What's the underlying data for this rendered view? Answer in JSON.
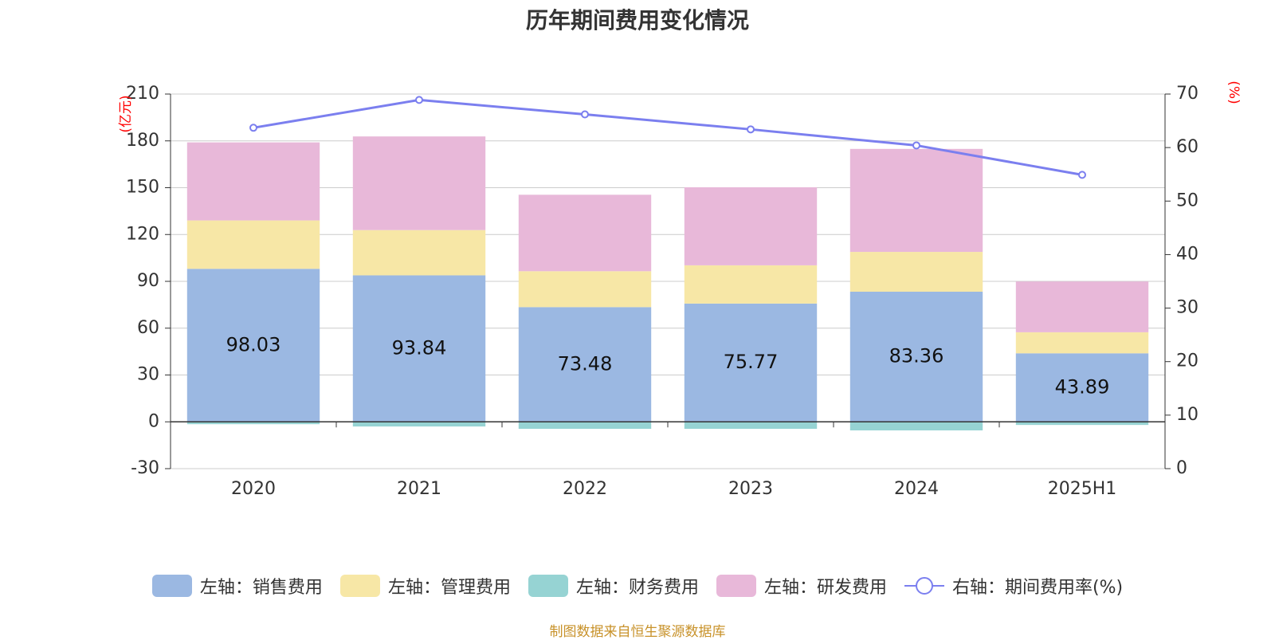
{
  "title": "历年期间费用变化情况",
  "source": "制图数据来自恒生聚源数据库",
  "colors": {
    "title": "#333333",
    "axis_unit": "#ff0000",
    "source": "#c8922a",
    "axis_line": "#333333",
    "grid": "#cccccc",
    "tick_label": "#333333"
  },
  "chart_data": {
    "type": "bar",
    "stacked": true,
    "categories": [
      "2020",
      "2021",
      "2022",
      "2023",
      "2024",
      "2025H1"
    ],
    "y_left": {
      "unit": "(亿元)",
      "range": [
        -30,
        210
      ],
      "ticks": [
        -30,
        0,
        30,
        60,
        90,
        120,
        150,
        180,
        210
      ]
    },
    "y_right": {
      "unit": "(%)",
      "range": [
        0,
        70
      ],
      "ticks": [
        0,
        10,
        20,
        30,
        40,
        50,
        60,
        70
      ]
    },
    "grid": true,
    "legend_position": "bottom",
    "series": [
      {
        "name": "左轴：销售费用",
        "axis": "left",
        "color": "#9bb8e2",
        "values": [
          98.03,
          93.84,
          73.48,
          75.77,
          83.36,
          43.89
        ],
        "labels": [
          "98.03",
          "93.84",
          "73.48",
          "75.77",
          "83.36",
          "43.89"
        ]
      },
      {
        "name": "左轴：管理费用",
        "axis": "left",
        "color": "#f7e7a6",
        "values": [
          31,
          29,
          23,
          24.5,
          25.5,
          13.5
        ]
      },
      {
        "name": "左轴：财务费用",
        "axis": "left",
        "color": "#96d3d3",
        "values": [
          -1.5,
          -3,
          -4.5,
          -4.5,
          -5.5,
          -2
        ]
      },
      {
        "name": "左轴：研发费用",
        "axis": "left",
        "color": "#e8b8d9",
        "values": [
          50,
          60,
          49,
          50,
          66,
          32.5
        ]
      },
      {
        "name": "右轴：期间费用率(%)",
        "axis": "right",
        "type": "line",
        "color": "#7b7fef",
        "values": [
          63.7,
          68.9,
          66.2,
          63.4,
          60.4,
          54.9
        ]
      }
    ]
  }
}
